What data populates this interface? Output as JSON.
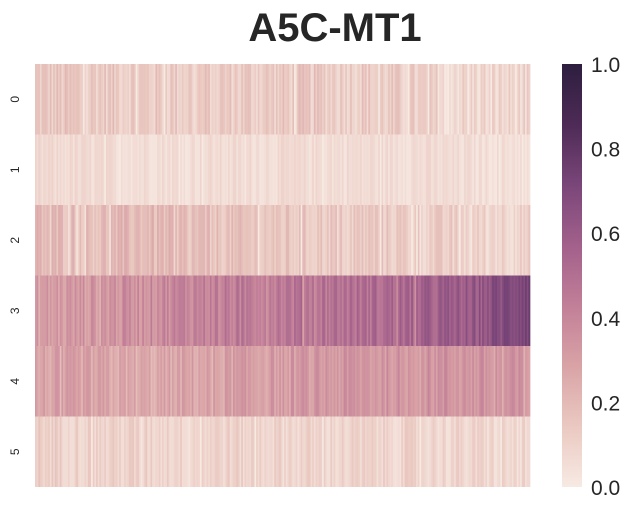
{
  "chart_data": {
    "type": "heatmap",
    "title": "A5C-MT1",
    "xlabel": "",
    "ylabel": "",
    "rows": [
      "0",
      "1",
      "2",
      "3",
      "4",
      "5"
    ],
    "num_columns": 300,
    "value_range": [
      0.0,
      1.0
    ],
    "colorbar_ticks": [
      "0.0",
      "0.2",
      "0.4",
      "0.6",
      "0.8",
      "1.0"
    ],
    "colormap": [
      "#f7eae3",
      "#eac9c1",
      "#d9a3a6",
      "#c27f98",
      "#a2608b",
      "#7a4679",
      "#4d2b56",
      "#2d1e3e"
    ],
    "row_profiles": [
      {
        "row": "0",
        "mean_value": 0.13,
        "trend": [
          0.14,
          0.14,
          0.13,
          0.13,
          0.13,
          0.13,
          0.13,
          0.1,
          0.08,
          0.08
        ],
        "spread": 0.08
      },
      {
        "row": "1",
        "mean_value": 0.06,
        "trend": [
          0.07,
          0.06,
          0.06,
          0.06,
          0.06,
          0.06,
          0.06,
          0.06,
          0.05,
          0.05
        ],
        "spread": 0.04
      },
      {
        "row": "2",
        "mean_value": 0.15,
        "trend": [
          0.2,
          0.18,
          0.2,
          0.17,
          0.15,
          0.14,
          0.14,
          0.12,
          0.1,
          0.1
        ],
        "spread": 0.07
      },
      {
        "row": "3",
        "mean_value": 0.45,
        "trend": [
          0.3,
          0.33,
          0.37,
          0.42,
          0.45,
          0.48,
          0.5,
          0.55,
          0.6,
          0.75
        ],
        "spread": 0.08
      },
      {
        "row": "4",
        "mean_value": 0.3,
        "trend": [
          0.28,
          0.27,
          0.25,
          0.28,
          0.3,
          0.32,
          0.33,
          0.35,
          0.34,
          0.33
        ],
        "spread": 0.07
      },
      {
        "row": "5",
        "mean_value": 0.1,
        "trend": [
          0.12,
          0.1,
          0.1,
          0.1,
          0.1,
          0.09,
          0.09,
          0.09,
          0.08,
          0.07
        ],
        "spread": 0.06
      }
    ]
  }
}
